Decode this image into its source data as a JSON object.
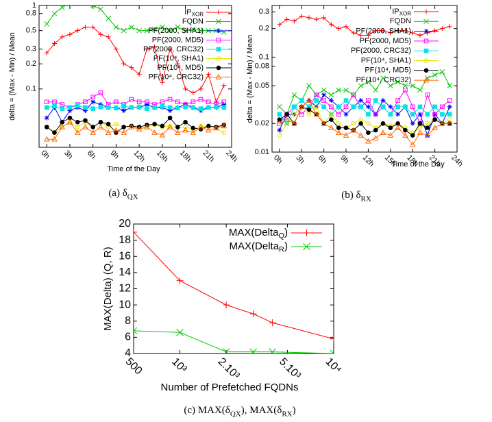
{
  "chart_data": [
    {
      "type": "line",
      "ylog": true,
      "legend": "top-right",
      "x_label": "Time of the Day",
      "y_label": "delta = (Max - Min) / Mean",
      "caption": [
        {
          "text": "(a) δ"
        },
        {
          "sub": "QX"
        }
      ],
      "x": [
        0,
        1,
        2,
        3,
        4,
        5,
        6,
        7,
        8,
        9,
        10,
        11,
        12,
        13,
        14,
        15,
        16,
        17,
        18,
        19,
        20,
        21,
        22,
        23
      ],
      "xlim": [
        -1,
        24
      ],
      "ylim": [
        0.02,
        1
      ],
      "xticks": [
        {
          "value": 0,
          "label": "0h"
        },
        {
          "value": 3,
          "label": "3h"
        },
        {
          "value": 6,
          "label": "6h"
        },
        {
          "value": 9,
          "label": "9h"
        },
        {
          "value": 12,
          "label": "12h"
        },
        {
          "value": 15,
          "label": "15h"
        },
        {
          "value": 18,
          "label": "18h"
        },
        {
          "value": 21,
          "label": "21h"
        },
        {
          "value": 24,
          "label": "24h"
        }
      ],
      "yticks": [
        0.1,
        0.2,
        0.3,
        0.5,
        0.8,
        1
      ],
      "series": [
        {
          "name": [
            {
              "text": "IP"
            },
            {
              "sub": "XOR"
            }
          ],
          "color": "#ff0000",
          "marker": "plus",
          "values": [
            0.27,
            0.35,
            0.42,
            0.45,
            0.5,
            0.55,
            0.55,
            0.45,
            0.42,
            0.3,
            0.2,
            0.18,
            0.15,
            0.3,
            0.32,
            0.12,
            0.3,
            0.2,
            0.1,
            0.09,
            0.1,
            0.15,
            0.07,
            0.11
          ]
        },
        {
          "name": "FQDN",
          "color": "#00cc00",
          "marker": "cross",
          "values": [
            0.6,
            0.8,
            0.95,
            1.05,
            1.2,
            1.1,
            1.0,
            0.9,
            0.7,
            0.55,
            0.5,
            0.55,
            0.5,
            0.5,
            0.52,
            0.55,
            0.5,
            0.55,
            0.5,
            0.52,
            0.5,
            0.5,
            0.5,
            0.48
          ]
        },
        {
          "name": "PF(2000, SHA1)",
          "color": "#0000ff",
          "marker": "star",
          "values": [
            0.045,
            0.06,
            0.04,
            0.055,
            0.06,
            0.055,
            0.07,
            0.065,
            0.06,
            0.06,
            0.055,
            0.06,
            0.06,
            0.065,
            0.06,
            0.06,
            0.055,
            0.06,
            0.065,
            0.06,
            0.055,
            0.06,
            0.06,
            0.065
          ]
        },
        {
          "name": "PF(2000, MD5)",
          "color": "#ff00ff",
          "marker": "square-open",
          "values": [
            0.07,
            0.07,
            0.065,
            0.06,
            0.065,
            0.07,
            0.08,
            0.09,
            0.065,
            0.07,
            0.065,
            0.075,
            0.07,
            0.07,
            0.065,
            0.07,
            0.075,
            0.07,
            0.065,
            0.07,
            0.075,
            0.07,
            0.065,
            0.07
          ]
        },
        {
          "name": "PF(2000, CRC32)",
          "color": "#00e5e5",
          "marker": "square",
          "values": [
            0.06,
            0.062,
            0.058,
            0.06,
            0.063,
            0.06,
            0.058,
            0.061,
            0.06,
            0.059,
            0.062,
            0.06,
            0.061,
            0.058,
            0.06,
            0.062,
            0.06,
            0.059,
            0.061,
            0.06,
            0.058,
            0.06,
            0.061,
            0.06
          ]
        },
        {
          "name": "PF(10⁴, SHA1)",
          "color": "#e5e500",
          "marker": "circle-open",
          "values": [
            0.035,
            0.03,
            0.035,
            0.04,
            0.035,
            0.04,
            0.035,
            0.04,
            0.035,
            0.038,
            0.035,
            0.036,
            0.034,
            0.035,
            0.037,
            0.035,
            0.036,
            0.034,
            0.035,
            0.033,
            0.036,
            0.035,
            0.034,
            0.03
          ]
        },
        {
          "name": "PF(10⁴, MD5)",
          "color": "#000000",
          "marker": "circle",
          "values": [
            0.035,
            0.03,
            0.04,
            0.045,
            0.04,
            0.042,
            0.035,
            0.04,
            0.038,
            0.03,
            0.035,
            0.036,
            0.035,
            0.037,
            0.038,
            0.036,
            0.045,
            0.035,
            0.04,
            0.034,
            0.033,
            0.036,
            0.035,
            0.037
          ]
        },
        {
          "name": "PF(10⁴, CRC32)",
          "color": "#ff6600",
          "marker": "triangle-open",
          "values": [
            0.025,
            0.025,
            0.035,
            0.04,
            0.03,
            0.035,
            0.03,
            0.035,
            0.03,
            0.032,
            0.03,
            0.035,
            0.033,
            0.035,
            0.03,
            0.028,
            0.035,
            0.03,
            0.032,
            0.03,
            0.035,
            0.032,
            0.034,
            0.036
          ]
        }
      ]
    },
    {
      "type": "line",
      "ylog": true,
      "legend": "top-right",
      "x_label": "Time of the Day",
      "y_label": "delta = (Max - Min) / Mean",
      "caption": [
        {
          "text": "(b) δ"
        },
        {
          "sub": "RX"
        }
      ],
      "x": [
        0,
        1,
        2,
        3,
        4,
        5,
        6,
        7,
        8,
        9,
        10,
        11,
        12,
        13,
        14,
        15,
        16,
        17,
        18,
        19,
        20,
        21,
        22,
        23
      ],
      "xlim": [
        -1,
        24
      ],
      "ylim": [
        0.01,
        0.35
      ],
      "xticks": [
        {
          "value": 0,
          "label": "0h"
        },
        {
          "value": 3,
          "label": "3h"
        },
        {
          "value": 6,
          "label": "6h"
        },
        {
          "value": 9,
          "label": "9h"
        },
        {
          "value": 12,
          "label": "12h"
        },
        {
          "value": 15,
          "label": "15h"
        },
        {
          "value": 18,
          "label": "18h"
        },
        {
          "value": 21,
          "label": "21h"
        },
        {
          "value": 24,
          "label": "24h"
        }
      ],
      "yticks": [
        0.01,
        0.02,
        0.05,
        0.08,
        0.1,
        0.2,
        0.3
      ],
      "series": [
        {
          "name": [
            {
              "text": "IP"
            },
            {
              "sub": "XOR"
            }
          ],
          "color": "#ff0000",
          "marker": "plus",
          "values": [
            0.22,
            0.25,
            0.24,
            0.27,
            0.26,
            0.25,
            0.26,
            0.22,
            0.2,
            0.21,
            0.18,
            0.17,
            0.17,
            0.19,
            0.19,
            0.18,
            0.19,
            0.19,
            0.18,
            0.17,
            0.18,
            0.19,
            0.2,
            0.21
          ]
        },
        {
          "name": "FQDN",
          "color": "#00cc00",
          "marker": "cross",
          "values": [
            0.03,
            0.025,
            0.04,
            0.035,
            0.05,
            0.04,
            0.045,
            0.04,
            0.045,
            0.045,
            0.04,
            0.05,
            0.055,
            0.045,
            0.06,
            0.05,
            0.055,
            0.05,
            0.05,
            0.045,
            0.06,
            0.065,
            0.07,
            0.05
          ]
        },
        {
          "name": "PF(2000, SHA1)",
          "color": "#0000ff",
          "marker": "star",
          "values": [
            0.017,
            0.025,
            0.025,
            0.03,
            0.035,
            0.03,
            0.04,
            0.035,
            0.03,
            0.025,
            0.03,
            0.035,
            0.03,
            0.025,
            0.035,
            0.03,
            0.025,
            0.03,
            0.02,
            0.025,
            0.015,
            0.025,
            0.02,
            0.03
          ]
        },
        {
          "name": "PF(2000, MD5)",
          "color": "#ff00ff",
          "marker": "square-open",
          "values": [
            0.02,
            0.025,
            0.03,
            0.025,
            0.03,
            0.04,
            0.035,
            0.03,
            0.025,
            0.03,
            0.04,
            0.03,
            0.035,
            0.025,
            0.03,
            0.025,
            0.035,
            0.045,
            0.03,
            0.02,
            0.04,
            0.025,
            0.03,
            0.035
          ]
        },
        {
          "name": "PF(2000, CRC32)",
          "color": "#00e5e5",
          "marker": "square",
          "values": [
            0.025,
            0.02,
            0.03,
            0.035,
            0.03,
            0.035,
            0.03,
            0.025,
            0.03,
            0.035,
            0.03,
            0.03,
            0.025,
            0.035,
            0.03,
            0.025,
            0.03,
            0.03,
            0.025,
            0.03,
            0.025,
            0.03,
            0.025,
            0.025
          ]
        },
        {
          "name": "PF(10⁴, SHA1)",
          "color": "#e5e500",
          "marker": "circle-open",
          "values": [
            0.015,
            0.02,
            0.025,
            0.03,
            0.025,
            0.03,
            0.02,
            0.025,
            0.02,
            0.018,
            0.02,
            0.022,
            0.02,
            0.018,
            0.02,
            0.019,
            0.02,
            0.018,
            0.016,
            0.018,
            0.02,
            0.022,
            0.02,
            0.022
          ]
        },
        {
          "name": "PF(10⁴, MD5)",
          "color": "#000000",
          "marker": "circle",
          "values": [
            0.022,
            0.025,
            0.02,
            0.03,
            0.028,
            0.025,
            0.02,
            0.022,
            0.018,
            0.018,
            0.017,
            0.02,
            0.016,
            0.017,
            0.02,
            0.018,
            0.02,
            0.017,
            0.015,
            0.02,
            0.018,
            0.022,
            0.02,
            0.02
          ]
        },
        {
          "name": "PF(10⁴, CRC32)",
          "color": "#ff6600",
          "marker": "triangle-open",
          "values": [
            0.02,
            0.022,
            0.02,
            0.03,
            0.035,
            0.025,
            0.02,
            0.018,
            0.016,
            0.015,
            0.017,
            0.015,
            0.013,
            0.014,
            0.016,
            0.015,
            0.018,
            0.015,
            0.012,
            0.016,
            0.015,
            0.018,
            0.02,
            0.02
          ]
        }
      ]
    },
    {
      "type": "line",
      "xlog": true,
      "legend": "top-right",
      "x_label": "Number of Prefetched FQDNs",
      "y_label": "MAX(Delta) (Q, R)",
      "caption": [
        {
          "text": "(c) MAX(δ"
        },
        {
          "sub": "QX"
        },
        {
          "text": "), MAX(δ"
        },
        {
          "sub": "RX"
        },
        {
          "text": ")"
        }
      ],
      "x": [
        500,
        1000,
        2000,
        3000,
        4000,
        10000
      ],
      "xlim": [
        500,
        10000
      ],
      "ylim": [
        4,
        20
      ],
      "xticks": [
        500,
        {
          "value": 1000,
          "label": "10³"
        },
        {
          "value": 2000,
          "label": "2.10³"
        },
        {
          "value": 5000,
          "label": "5.10³"
        },
        {
          "value": 10000,
          "label": "10⁴"
        }
      ],
      "yticks": [
        4,
        6,
        8,
        10,
        12,
        14,
        16,
        18,
        20
      ],
      "series": [
        {
          "name": [
            {
              "text": "MAX(Delta"
            },
            {
              "sub": "Q"
            },
            {
              "text": ")"
            }
          ],
          "color": "#ff0000",
          "marker": "plus",
          "values": [
            19,
            13,
            10,
            8.9,
            7.8,
            5.8
          ]
        },
        {
          "name": [
            {
              "text": "MAX(Delta"
            },
            {
              "sub": "R"
            },
            {
              "text": ")"
            }
          ],
          "color": "#00cc00",
          "marker": "cross",
          "values": [
            6.8,
            6.6,
            4.2,
            4.2,
            4.2,
            4.0
          ]
        }
      ]
    }
  ]
}
